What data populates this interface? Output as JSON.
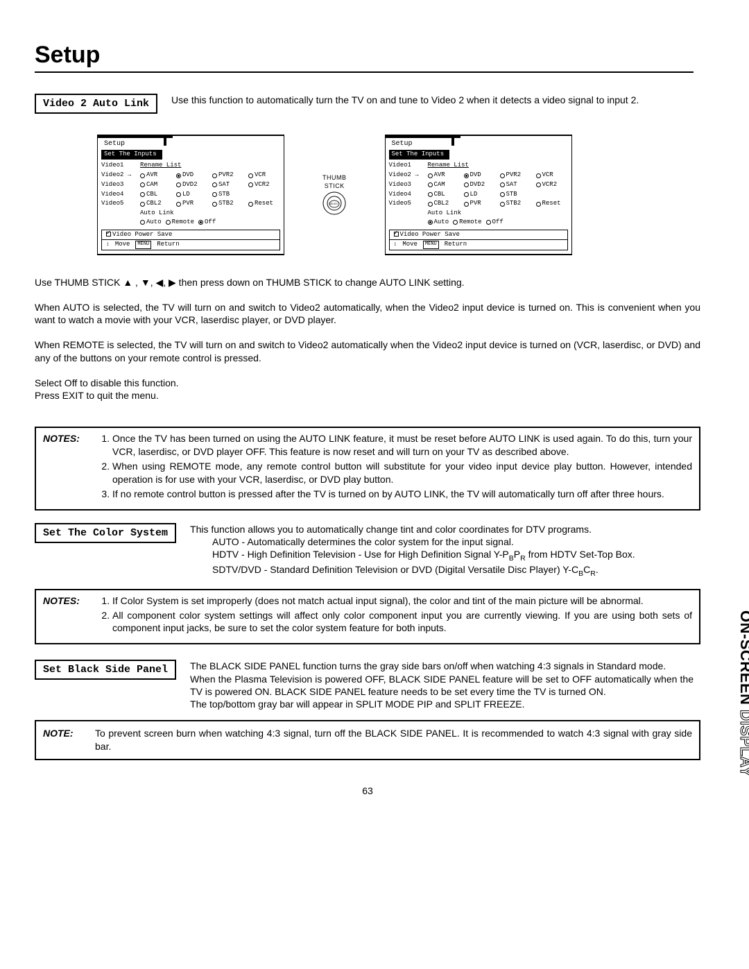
{
  "title": "Setup",
  "side_label": {
    "left": "ON-SCREEN",
    "right": "DISPLAY"
  },
  "page_number": "63",
  "s_video2": {
    "label": "Video 2 Auto Link",
    "desc": "Use this function to automatically turn the TV on and tune to Video 2 when it detects a video signal to input 2."
  },
  "thumbstick": {
    "l1": "THUMB",
    "l2": "STICK",
    "btn": "SELECT"
  },
  "dialog_common": {
    "title": "Setup",
    "subheader": "Set The Inputs",
    "rename": "Rename List",
    "inputs": [
      "Video1",
      "Video2",
      "Video3",
      "Video4",
      "Video5"
    ],
    "active_input_idx": 1,
    "option_rows": [
      [
        "AVR",
        "DVD",
        "PVR2",
        "VCR"
      ],
      [
        "CAM",
        "DVD2",
        "SAT",
        "VCR2"
      ],
      [
        "CBL",
        "LD",
        "STB",
        ""
      ],
      [
        "CBL2",
        "PVR",
        "STB2",
        "Reset"
      ]
    ],
    "selected": {
      "row": 0,
      "col": 1
    },
    "autolink_label": "Auto Link",
    "autolink_opts": [
      "Auto",
      "Remote",
      "Off"
    ],
    "vps": "Video Power Save",
    "status": {
      "move": "Move",
      "return": "Return"
    }
  },
  "dialogA_autolink_sel": 2,
  "dialogB_autolink_sel": 0,
  "body": {
    "p1": "Use THUMB STICK ▲ , ▼, ◀, ▶ then press down on THUMB STICK to change AUTO LINK setting.",
    "p2": "When AUTO  is selected, the TV will turn on and switch to Video2 automatically, when the Video2 input device is turned on. This is convenient when you want to watch a movie with your VCR, laserdisc player, or DVD player.",
    "p3": "When REMOTE is selected, the TV will turn on and switch to Video2 automatically when the Video2 input device is turned on (VCR, laserdisc, or DVD) and any of the buttons on your remote control is pressed.",
    "p4": "Select Off to disable this function.",
    "p5": "Press EXIT to quit the menu."
  },
  "notes1": {
    "label": "NOTES:",
    "items": [
      "Once the TV has been turned on using the AUTO LINK feature, it must be reset before AUTO LINK is used again. To do this, turn your VCR, laserdisc, or DVD player OFF. This feature is now reset and will turn on your TV as described above.",
      "When using REMOTE mode, any remote control button will substitute for your video input device play button. However, intended operation is for use with your VCR, laserdisc, or DVD play button.",
      "If no remote control button is pressed after the TV is turned on by AUTO LINK, the TV will automatically turn off after three hours."
    ]
  },
  "s_color": {
    "label": "Set The Color System",
    "lines": [
      "This function allows you to automatically change tint and color coordinates for DTV programs.",
      "AUTO - Automatically determines the color system for the input signal.",
      "HDTV - High Definition Television - Use for High Definition Signal Y-P",
      "  from HDTV Set-Top Box.",
      "SDTV/DVD - Standard Definition Television or DVD (Digital Versatile Disc Player) Y-C"
    ],
    "sub": {
      "b": "B",
      "p": "P",
      "r": "R",
      "c": "C"
    }
  },
  "notes2": {
    "label": "NOTES:",
    "items": [
      "If Color System is set improperly (does not match actual input signal), the color and tint of the main picture will be abnormal.",
      "All component color system settings will affect only color component input you are currently viewing.  If you are using both sets of component input jacks, be sure to set the color system feature for both inputs."
    ]
  },
  "s_black": {
    "label": "Set Black Side Panel",
    "lines": [
      "The BLACK SIDE PANEL function turns the gray side bars on/off when watching 4:3 signals in Standard mode.",
      "When the Plasma Television is powered OFF, BLACK SIDE PANEL feature will be set to OFF automatically when the TV is powered ON.  BLACK SIDE PANEL feature needs to be set every time the TV is turned ON.",
      "The top/bottom gray bar will appear in SPLIT MODE PIP and SPLIT FREEZE."
    ]
  },
  "note3": {
    "label": "NOTE:",
    "text": "To prevent screen burn when watching 4:3 signal, turn off the BLACK SIDE PANEL.  It is recommended to watch 4:3 signal with gray side bar."
  }
}
